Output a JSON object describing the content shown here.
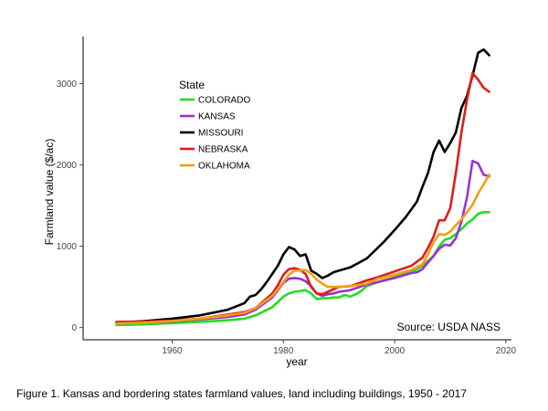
{
  "caption": "Figure 1. Kansas and bordering states farmland values, land including buildings, 1950 - 2017",
  "chart_data": {
    "type": "line",
    "title": "",
    "xlabel": "year",
    "ylabel": "Farmland value  ($/ac)",
    "xlim": [
      1944,
      2021
    ],
    "ylim": [
      -150,
      3580
    ],
    "xticks": [
      1960,
      1980,
      2000,
      2020
    ],
    "yticks": [
      0,
      1000,
      2000,
      3000
    ],
    "grid": false,
    "legend": {
      "title": "State",
      "placement": "upper-left-inside"
    },
    "annotation": "Source: USDA NASS",
    "series": [
      {
        "name": "COLORADO",
        "color": "#22dd22",
        "x": [
          1950,
          1955,
          1960,
          1965,
          1970,
          1973,
          1975,
          1978,
          1980,
          1981,
          1982,
          1983,
          1984,
          1985,
          1986,
          1987,
          1988,
          1989,
          1990,
          1991,
          1992,
          1993,
          1994,
          1995,
          1997,
          2000,
          2003,
          2005,
          2007,
          2008,
          2009,
          2010,
          2011,
          2012,
          2013,
          2014,
          2015,
          2016,
          2017
        ],
        "y": [
          30,
          40,
          55,
          70,
          90,
          110,
          150,
          250,
          380,
          420,
          440,
          450,
          460,
          420,
          350,
          360,
          360,
          370,
          370,
          400,
          380,
          410,
          450,
          510,
          560,
          620,
          680,
          760,
          880,
          1000,
          1080,
          1100,
          1150,
          1210,
          1280,
          1330,
          1400,
          1420,
          1420
        ]
      },
      {
        "name": "KANSAS",
        "color": "#9b30d9",
        "x": [
          1950,
          1955,
          1960,
          1965,
          1970,
          1973,
          1975,
          1978,
          1980,
          1981,
          1982,
          1983,
          1984,
          1985,
          1986,
          1987,
          1988,
          1989,
          1990,
          1992,
          1995,
          1997,
          2000,
          2003,
          2004,
          2005,
          2006,
          2007,
          2008,
          2009,
          2010,
          2011,
          2012,
          2013,
          2014,
          2015,
          2016,
          2017
        ],
        "y": [
          50,
          60,
          75,
          100,
          130,
          160,
          220,
          370,
          550,
          600,
          610,
          600,
          570,
          510,
          420,
          390,
          410,
          420,
          440,
          460,
          530,
          560,
          610,
          670,
          680,
          720,
          800,
          880,
          970,
          1020,
          1010,
          1100,
          1300,
          1600,
          2050,
          2020,
          1880,
          1860
        ]
      },
      {
        "name": "MISSOURI",
        "color": "#000000",
        "x": [
          1950,
          1955,
          1960,
          1965,
          1970,
          1973,
          1974,
          1975,
          1976,
          1977,
          1978,
          1979,
          1980,
          1981,
          1982,
          1983,
          1984,
          1985,
          1986,
          1987,
          1988,
          1989,
          1990,
          1992,
          1995,
          1998,
          2000,
          2002,
          2004,
          2005,
          2006,
          2007,
          2008,
          2009,
          2010,
          2011,
          2012,
          2013,
          2014,
          2015,
          2016,
          2017
        ],
        "y": [
          60,
          80,
          110,
          150,
          220,
          300,
          380,
          400,
          470,
          560,
          660,
          760,
          900,
          990,
          960,
          880,
          900,
          700,
          660,
          610,
          640,
          680,
          700,
          740,
          850,
          1050,
          1200,
          1360,
          1550,
          1730,
          1900,
          2160,
          2300,
          2160,
          2270,
          2400,
          2700,
          2850,
          3100,
          3380,
          3420,
          3350
        ]
      },
      {
        "name": "NEBRASKA",
        "color": "#e01b1b",
        "x": [
          1950,
          1955,
          1960,
          1965,
          1970,
          1973,
          1975,
          1978,
          1979,
          1980,
          1981,
          1982,
          1983,
          1984,
          1985,
          1986,
          1987,
          1988,
          1990,
          1992,
          1995,
          1997,
          2000,
          2003,
          2005,
          2006,
          2007,
          2008,
          2009,
          2010,
          2011,
          2012,
          2013,
          2014,
          2015,
          2016,
          2017
        ],
        "y": [
          70,
          75,
          85,
          110,
          160,
          190,
          240,
          420,
          520,
          650,
          720,
          730,
          710,
          660,
          500,
          420,
          410,
          440,
          500,
          510,
          580,
          620,
          690,
          760,
          860,
          980,
          1120,
          1320,
          1320,
          1470,
          1900,
          2400,
          2800,
          3130,
          3050,
          2950,
          2900
        ]
      },
      {
        "name": "OKLAHOMA",
        "color": "#f0a012",
        "x": [
          1950,
          1955,
          1960,
          1965,
          1970,
          1973,
          1975,
          1978,
          1980,
          1981,
          1982,
          1983,
          1984,
          1985,
          1986,
          1987,
          1988,
          1990,
          1992,
          1995,
          1997,
          2000,
          2003,
          2005,
          2006,
          2007,
          2008,
          2009,
          2010,
          2011,
          2012,
          2013,
          2014,
          2015,
          2016,
          2017
        ],
        "y": [
          50,
          60,
          80,
          110,
          150,
          180,
          240,
          390,
          560,
          650,
          700,
          700,
          710,
          660,
          590,
          540,
          500,
          500,
          510,
          540,
          600,
          650,
          710,
          780,
          900,
          1050,
          1150,
          1140,
          1180,
          1260,
          1330,
          1420,
          1510,
          1650,
          1760,
          1880
        ]
      }
    ]
  }
}
